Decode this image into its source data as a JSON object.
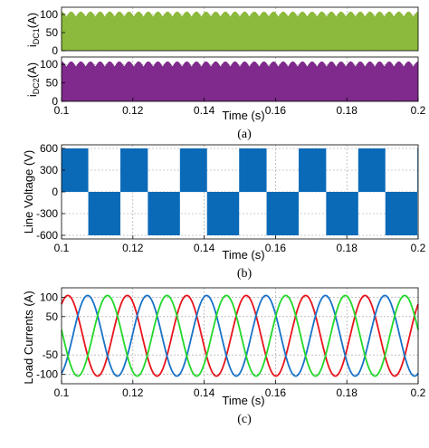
{
  "figure": {
    "captions": [
      "(a)",
      "(b)",
      "(c)"
    ]
  },
  "colors": {
    "idc1": "#8cba3c",
    "idc2": "#7f2a8c",
    "line_voltage": "#0a6ab8",
    "phase_a": "#e8141c",
    "phase_b": "#1873c8",
    "phase_c": "#22d82a",
    "grid": "#9a9a9a"
  },
  "chart_data": [
    {
      "type": "area",
      "panel": "a-top",
      "ylabel": "i_DC1(A)",
      "ylabel_main": "i",
      "ylabel_sub": "DC1",
      "ylabel_unit": "(A)",
      "xlim": [
        0.1,
        0.2
      ],
      "ylim": [
        0,
        120
      ],
      "yticks": [
        "0",
        "50",
        "100"
      ],
      "yticks_values": [
        0,
        50,
        100
      ],
      "series": [
        {
          "values_description_free": true,
          "min": 0,
          "max_peak": 108,
          "max_valley": 94,
          "ripples_per_period": 60
        }
      ]
    },
    {
      "type": "area",
      "panel": "a-bottom",
      "ylabel": "i_DC2(A)",
      "ylabel_main": "i",
      "ylabel_sub": "DC2",
      "ylabel_unit": "(A)",
      "xlabel": "Time (s)",
      "xlim": [
        0.1,
        0.2
      ],
      "ylim": [
        0,
        120
      ],
      "xticks": [
        "0.1",
        "0.12",
        "0.14",
        "0.16",
        "0.18",
        "0.2"
      ],
      "yticks": [
        "0",
        "50",
        "100"
      ],
      "yticks_values": [
        0,
        50,
        100
      ],
      "series": [
        {
          "min": 0,
          "max_peak": 108,
          "max_valley": 94,
          "ripples_per_period": 60
        }
      ]
    },
    {
      "type": "line",
      "panel": "b",
      "ylabel": "Line Voltage (V)",
      "xlabel": "Time (s)",
      "xlim": [
        0.1,
        0.2
      ],
      "ylim": [
        -650,
        650
      ],
      "xticks": [
        "0.1",
        "0.12",
        "0.14",
        "0.16",
        "0.18",
        "0.2"
      ],
      "yticks": [
        "600",
        "300",
        "0",
        "-300",
        "-600"
      ],
      "yticks_values": [
        600,
        300,
        0,
        -300,
        -600
      ],
      "series": [
        {
          "level": 600,
          "pulses": [
            [
              0.1,
              0.1075
            ],
            [
              0.1165,
              0.1242
            ],
            [
              0.1332,
              0.1408
            ],
            [
              0.1498,
              0.1575
            ],
            [
              0.1665,
              0.1742
            ],
            [
              0.1832,
              0.1908
            ],
            [
              0.1998,
              0.2
            ]
          ]
        },
        {
          "level": -600,
          "pulses": [
            [
              0.1075,
              0.1165
            ],
            [
              0.1242,
              0.1332
            ],
            [
              0.1408,
              0.1498
            ],
            [
              0.1575,
              0.1665
            ],
            [
              0.1742,
              0.1832
            ],
            [
              0.1908,
              0.1998
            ]
          ]
        }
      ]
    },
    {
      "type": "line",
      "panel": "c",
      "ylabel": "Load Currents (A)",
      "xlabel": "Time (s)",
      "xlim": [
        0.1,
        0.2
      ],
      "ylim": [
        -125,
        125
      ],
      "xticks": [
        "0.1",
        "0.12",
        "0.14",
        "0.16",
        "0.18",
        "0.2"
      ],
      "yticks": [
        "100",
        "50",
        "-50",
        "-100"
      ],
      "yticks_values": [
        100,
        50,
        -50,
        -100
      ],
      "amplitude": 105,
      "frequency_hz": 60,
      "series": [
        {
          "phase_deg": 0
        },
        {
          "phase_deg": -120
        },
        {
          "phase_deg": 120
        }
      ]
    }
  ]
}
